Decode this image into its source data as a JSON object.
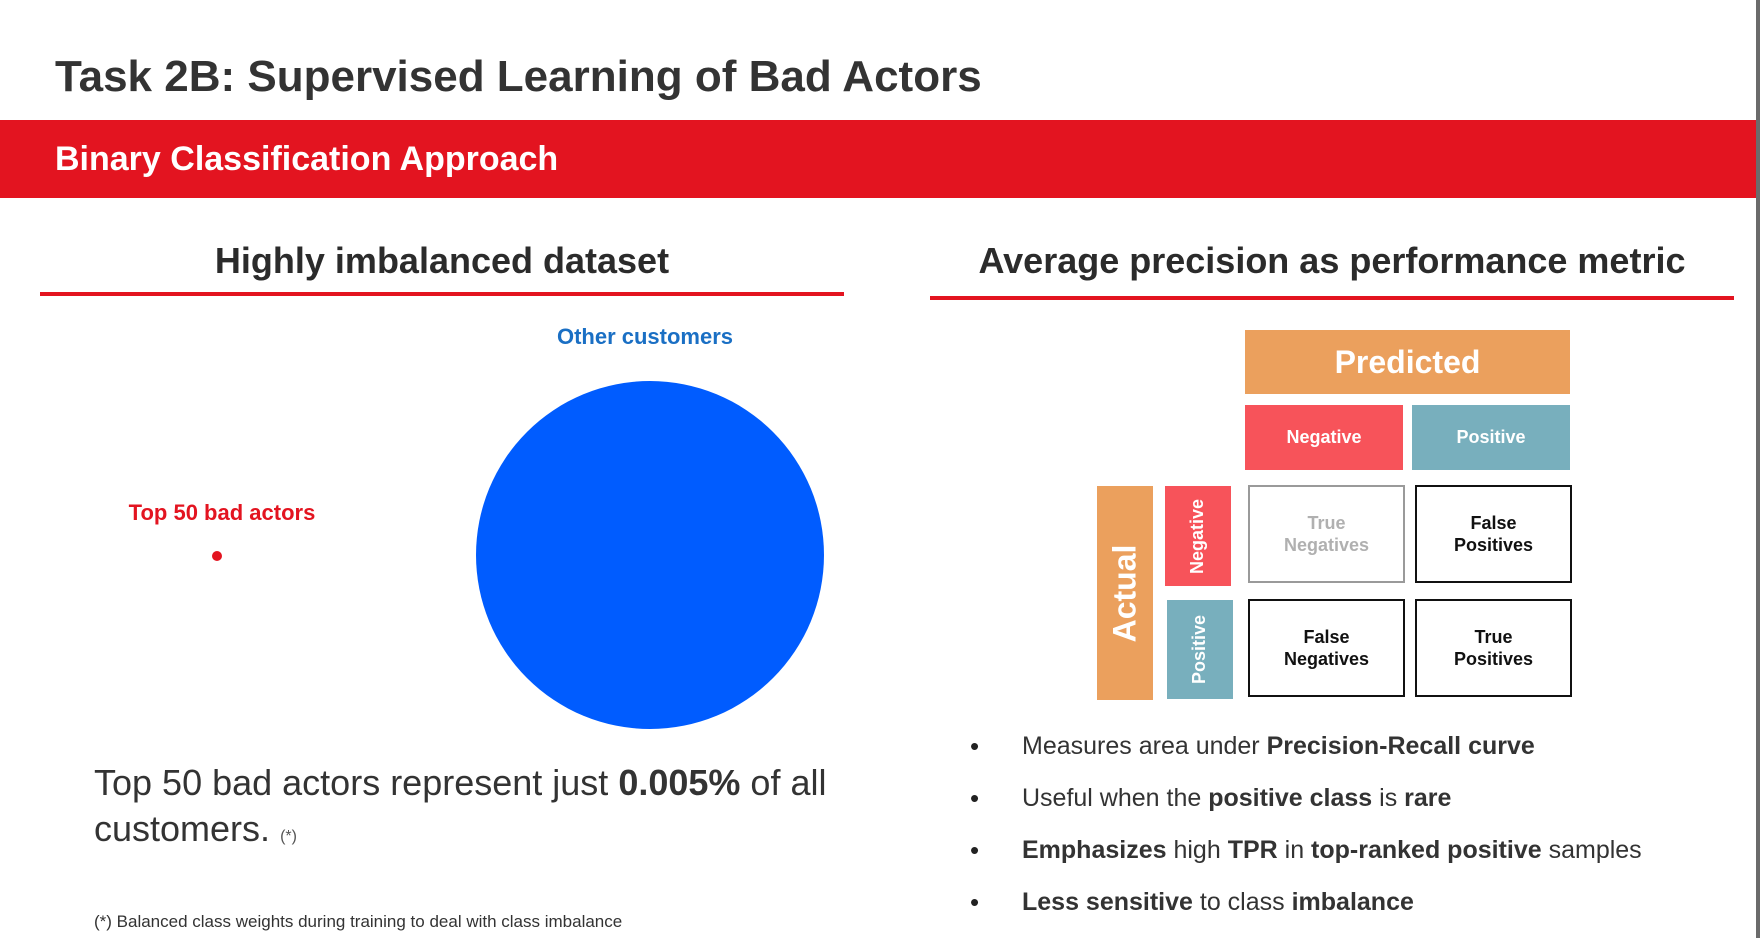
{
  "title": "Task 2B: Supervised Learning of Bad Actors",
  "banner": "Binary Classification Approach",
  "left": {
    "heading": "Highly imbalanced dataset",
    "statement": {
      "p1": "Top 50 bad actors represent just ",
      "bold": "0.005%",
      "p2": " of all customers.",
      "note": "(*)"
    },
    "footnote": "(*) Balanced class weights during training to deal with class imbalance"
  },
  "right": {
    "heading": "Average precision as performance metric",
    "matrix": {
      "predicted": "Predicted",
      "actual": "Actual",
      "pred_negative": "Negative",
      "pred_positive": "Positive",
      "act_negative": "Negative",
      "act_positive": "Positive",
      "tn": [
        "True",
        "Negatives"
      ],
      "fp": [
        "False",
        "Positives"
      ],
      "fn": [
        "False",
        "Negatives"
      ],
      "tp": [
        "True",
        "Positives"
      ]
    },
    "bullets": [
      [
        {
          "t": "Measures area under "
        },
        {
          "t": "Precision-Recall curve",
          "b": true
        }
      ],
      [
        {
          "t": "Useful when the "
        },
        {
          "t": "positive class",
          "b": true
        },
        {
          "t": " is "
        },
        {
          "t": "rare",
          "b": true
        }
      ],
      [
        {
          "t": "Emphasizes",
          "b": true
        },
        {
          "t": " high "
        },
        {
          "t": "TPR",
          "b": true
        },
        {
          "t": " in "
        },
        {
          "t": "top-ranked positive",
          "b": true
        },
        {
          "t": " samples"
        }
      ],
      [
        {
          "t": "Less sensitive",
          "b": true
        },
        {
          "t": " to class "
        },
        {
          "t": "imbalance",
          "b": true
        }
      ]
    ]
  },
  "chart_data": {
    "type": "pie",
    "categories": [
      "Top 50 bad actors",
      "Other customers"
    ],
    "values": [
      0.005,
      99.995
    ],
    "unit": "%",
    "colors": [
      "#e31420",
      "#005cff"
    ]
  }
}
